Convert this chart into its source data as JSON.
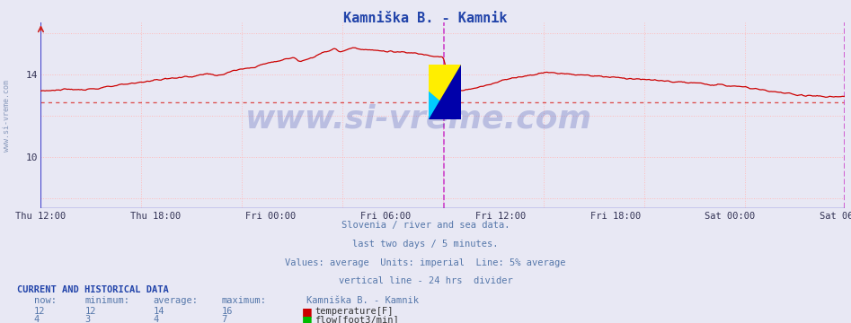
{
  "title": "Kamniška B. - Kamnik",
  "background_color": "#e8e8f4",
  "plot_bg_color": "#e8e8f4",
  "grid_color_v": "#ffcccc",
  "grid_color_h": "#ffcccc",
  "x_labels": [
    "Thu 12:00",
    "Thu 18:00",
    "Fri 00:00",
    "Fri 06:00",
    "Fri 12:00",
    "Fri 18:00",
    "Sat 00:00",
    "Sat 06:00"
  ],
  "ylim": [
    7.5,
    16.5
  ],
  "yticks": [
    10,
    14
  ],
  "temp_color": "#cc0000",
  "flow_color": "#00bb00",
  "avg_line_color": "#dd6666",
  "divider_color": "#cc44cc",
  "left_axis_color": "#4444cc",
  "bottom_axis_color": "#4444cc",
  "right_arrow_color": "#cc8800",
  "temp_average": 12.65,
  "subtitle1": "Slovenia / river and sea data.",
  "subtitle2": "last two days / 5 minutes.",
  "subtitle3": "Values: average  Units: imperial  Line: 5% average",
  "subtitle4": "vertical line - 24 hrs  divider",
  "footer_label": "CURRENT AND HISTORICAL DATA",
  "col_now": "now:",
  "col_min": "minimum:",
  "col_avg": "average:",
  "col_max": "maximum:",
  "station": "Kamniška B. - Kamnik",
  "temp_now": "12",
  "temp_min": "12",
  "temp_avg": "14",
  "temp_max": "16",
  "flow_now": "4",
  "flow_min": "3",
  "flow_avg": "4",
  "flow_max": "7",
  "temp_label": "temperature[F]",
  "flow_label": "flow[foot3/min]",
  "watermark": "www.si-vreme.com",
  "total_points": 576,
  "divider_idx": 288
}
